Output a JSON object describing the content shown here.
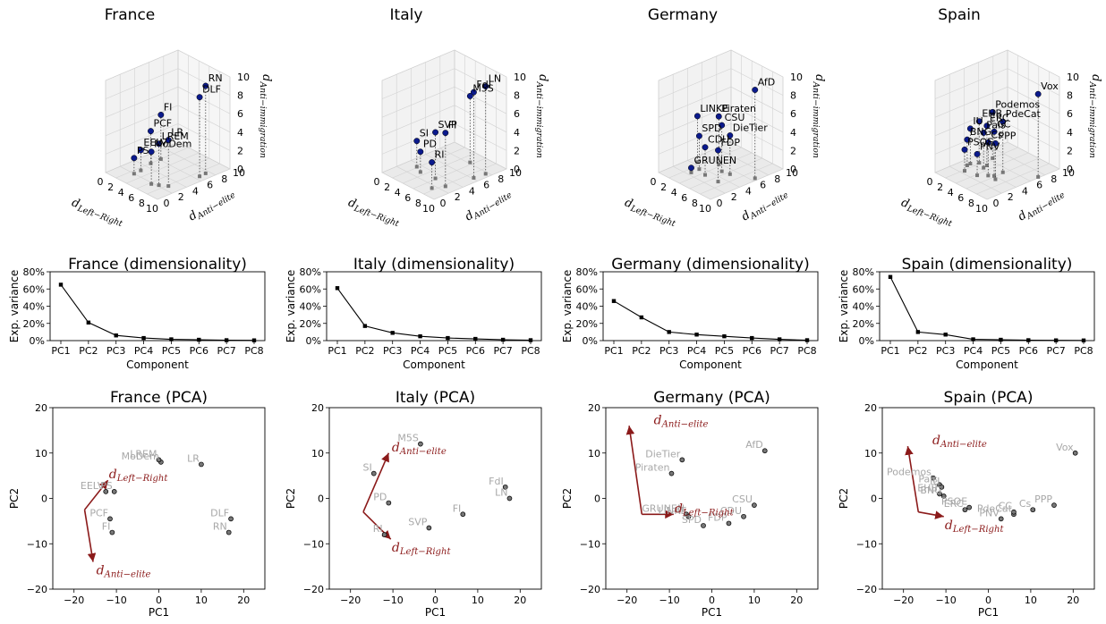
{
  "chart_data": [
    {
      "type": "scatter3d",
      "title": "France",
      "xlabel": "d_Left−Right",
      "ylabel": "d_Anti−elite",
      "zlabel": "d_Anti−immigration",
      "xlim": [
        0,
        10
      ],
      "ylim": [
        0,
        10
      ],
      "zlim": [
        0,
        10
      ],
      "xticks": [
        0,
        2,
        4,
        6,
        8,
        10
      ],
      "yticks": [
        0,
        2,
        4,
        6,
        8,
        10
      ],
      "zticks": [
        0,
        2,
        4,
        6,
        8,
        10
      ],
      "points": [
        {
          "label": "RN",
          "x": 8.8,
          "y": 7.5,
          "z": 9.5
        },
        {
          "label": "DLF",
          "x": 8.9,
          "y": 6.6,
          "z": 8.6
        },
        {
          "label": "FI",
          "x": 2.0,
          "y": 6.2,
          "z": 4.8
        },
        {
          "label": "PCF",
          "x": 2.0,
          "y": 4.8,
          "z": 3.5
        },
        {
          "label": "LR",
          "x": 8.2,
          "y": 2.8,
          "z": 5.0
        },
        {
          "label": "LREM",
          "x": 7.2,
          "y": 2.2,
          "z": 4.5
        },
        {
          "label": "EELV",
          "x": 2.6,
          "y": 3.0,
          "z": 2.2
        },
        {
          "label": "MoDem",
          "x": 6.3,
          "y": 1.8,
          "z": 3.5
        },
        {
          "label": "PS",
          "x": 2.7,
          "y": 2.0,
          "z": 1.7
        }
      ]
    },
    {
      "type": "scatter3d",
      "title": "Italy",
      "xlabel": "d_Left−Right",
      "ylabel": "d_Anti−elite",
      "zlabel": "d_Anti−immigration",
      "xlim": [
        0,
        10
      ],
      "ylim": [
        0,
        10
      ],
      "zlim": [
        0,
        10
      ],
      "xticks": [
        0,
        2,
        4,
        6,
        8,
        10
      ],
      "yticks": [
        0,
        2,
        4,
        6,
        8,
        10
      ],
      "zticks": [
        0,
        2,
        4,
        6,
        8,
        10
      ],
      "points": [
        {
          "label": "FdI",
          "x": 9.0,
          "y": 6.2,
          "z": 9.3
        },
        {
          "label": "LN",
          "x": 9.2,
          "y": 7.7,
          "z": 9.5
        },
        {
          "label": "M5S",
          "x": 5.5,
          "y": 8.2,
          "z": 7.2
        },
        {
          "label": "SVP",
          "x": 5.8,
          "y": 3.2,
          "z": 5.0
        },
        {
          "label": "FI",
          "x": 8.3,
          "y": 2.8,
          "z": 5.8
        },
        {
          "label": "SI",
          "x": 1.8,
          "y": 3.5,
          "z": 2.8
        },
        {
          "label": "PD",
          "x": 3.2,
          "y": 3.0,
          "z": 2.2
        },
        {
          "label": "RI",
          "x": 7.5,
          "y": 1.5,
          "z": 2.8
        }
      ]
    },
    {
      "type": "scatter3d",
      "title": "Germany",
      "xlabel": "d_Left−Right",
      "ylabel": "d_Anti−elite",
      "zlabel": "d_Anti−immigration",
      "xlim": [
        0,
        10
      ],
      "ylim": [
        0,
        10
      ],
      "zlim": [
        0,
        10
      ],
      "xticks": [
        0,
        2,
        4,
        6,
        8,
        10
      ],
      "yticks": [
        0,
        2,
        4,
        6,
        8,
        10
      ],
      "zticks": [
        0,
        2,
        4,
        6,
        8,
        10
      ],
      "points": [
        {
          "label": "AfD",
          "x": 9.5,
          "y": 6.5,
          "z": 9.6
        },
        {
          "label": "Piraten",
          "x": 3.5,
          "y": 5.8,
          "z": 5.2
        },
        {
          "label": "CSU",
          "x": 5.2,
          "y": 5.0,
          "z": 5.0
        },
        {
          "label": "DieTier",
          "x": 6.5,
          "y": 5.2,
          "z": 4.2
        },
        {
          "label": "LINKE",
          "x": 1.2,
          "y": 4.5,
          "z": 5.0
        },
        {
          "label": "SPD",
          "x": 2.8,
          "y": 3.6,
          "z": 3.6
        },
        {
          "label": "CDU",
          "x": 4.5,
          "y": 3.2,
          "z": 3.0
        },
        {
          "label": "FDP",
          "x": 7.0,
          "y": 3.2,
          "z": 3.4
        },
        {
          "label": "GRUNEN",
          "x": 2.8,
          "y": 2.5,
          "z": 0.5
        }
      ]
    },
    {
      "type": "scatter3d",
      "title": "Spain",
      "xlabel": "d_Left−Right",
      "ylabel": "d_Anti−elite",
      "zlabel": "d_Anti−immigration",
      "xlim": [
        0,
        10
      ],
      "ylim": [
        0,
        10
      ],
      "zlim": [
        0,
        10
      ],
      "xticks": [
        0,
        2,
        4,
        6,
        8,
        10
      ],
      "yticks": [
        0,
        2,
        4,
        6,
        8,
        10
      ],
      "zticks": [
        0,
        2,
        4,
        6,
        8,
        10
      ],
      "points": [
        {
          "label": "Vox",
          "x": 9.8,
          "y": 7.2,
          "z": 9.0
        },
        {
          "label": "Podemos",
          "x": 2.0,
          "y": 6.5,
          "z": 5.0
        },
        {
          "label": "PdeCat",
          "x": 5.8,
          "y": 5.2,
          "z": 5.5
        },
        {
          "label": "EHB",
          "x": 1.8,
          "y": 4.8,
          "z": 4.5
        },
        {
          "label": "ERC",
          "x": 3.0,
          "y": 5.0,
          "z": 4.3
        },
        {
          "label": "CC",
          "x": 5.8,
          "y": 4.0,
          "z": 4.8
        },
        {
          "label": "IU",
          "x": 1.2,
          "y": 4.0,
          "z": 3.8
        },
        {
          "label": "Pais",
          "x": 3.2,
          "y": 4.4,
          "z": 3.8
        },
        {
          "label": "BNG",
          "x": 1.3,
          "y": 3.5,
          "z": 2.8
        },
        {
          "label": "Cs",
          "x": 5.2,
          "y": 3.6,
          "z": 3.6
        },
        {
          "label": "PPP",
          "x": 6.6,
          "y": 3.6,
          "z": 3.9
        },
        {
          "label": "PSOE",
          "x": 2.2,
          "y": 2.5,
          "z": 2.3
        },
        {
          "label": "PNV",
          "x": 4.2,
          "y": 2.8,
          "z": 2.3
        }
      ]
    },
    {
      "type": "line",
      "title": "France (dimensionality)",
      "xlabel": "Component",
      "ylabel": "Exp. variance",
      "categories": [
        "PC1",
        "PC2",
        "PC3",
        "PC4",
        "PC5",
        "PC6",
        "PC7",
        "PC8"
      ],
      "values": [
        65,
        21,
        6,
        3,
        1.5,
        1,
        0.5,
        0.3
      ],
      "ylim": [
        0,
        80
      ],
      "yticks": [
        "0%",
        "20%",
        "40%",
        "60%",
        "80%"
      ]
    },
    {
      "type": "line",
      "title": "Italy (dimensionality)",
      "xlabel": "Component",
      "ylabel": "Exp. variance",
      "categories": [
        "PC1",
        "PC2",
        "PC3",
        "PC4",
        "PC5",
        "PC6",
        "PC7",
        "PC8"
      ],
      "values": [
        61,
        17,
        9,
        5,
        3,
        2,
        1,
        0.5
      ],
      "ylim": [
        0,
        80
      ],
      "yticks": [
        "0%",
        "20%",
        "40%",
        "60%",
        "80%"
      ]
    },
    {
      "type": "line",
      "title": "Germany (dimensionality)",
      "xlabel": "Component",
      "ylabel": "Exp. variance",
      "categories": [
        "PC1",
        "PC2",
        "PC3",
        "PC4",
        "PC5",
        "PC6",
        "PC7",
        "PC8"
      ],
      "values": [
        46,
        27,
        10,
        7,
        5,
        3,
        1.5,
        0.5
      ],
      "ylim": [
        0,
        80
      ],
      "yticks": [
        "0%",
        "20%",
        "40%",
        "60%",
        "80%"
      ]
    },
    {
      "type": "line",
      "title": "Spain (dimensionality)",
      "xlabel": "Component",
      "ylabel": "Exp. variance",
      "categories": [
        "PC1",
        "PC2",
        "PC3",
        "PC4",
        "PC5",
        "PC6",
        "PC7",
        "PC8"
      ],
      "values": [
        74,
        10,
        7,
        1.5,
        1,
        0.5,
        0.3,
        0.2
      ],
      "ylim": [
        0,
        80
      ],
      "yticks": [
        "0%",
        "20%",
        "40%",
        "60%",
        "80%"
      ]
    },
    {
      "type": "scatter",
      "title": "France (PCA)",
      "xlabel": "PC1",
      "ylabel": "PC2",
      "xlim": [
        -25,
        25
      ],
      "ylim": [
        -20,
        20
      ],
      "xticks": [
        -20,
        -10,
        0,
        10,
        20
      ],
      "yticks": [
        -20,
        -10,
        0,
        10,
        20
      ],
      "points": [
        {
          "label": "MoDem",
          "x": 0.5,
          "y": 8.0
        },
        {
          "label": "LREM",
          "x": 0,
          "y": 8.5
        },
        {
          "label": "LR",
          "x": 10,
          "y": 7.5
        },
        {
          "label": "EELV",
          "x": -12.5,
          "y": 1.5
        },
        {
          "label": "PS",
          "x": -10.5,
          "y": 1.5
        },
        {
          "label": "PCF",
          "x": -11.5,
          "y": -4.5
        },
        {
          "label": "FI",
          "x": -11,
          "y": -7.5
        },
        {
          "label": "DLF",
          "x": 17,
          "y": -4.5
        },
        {
          "label": "RN",
          "x": 16.5,
          "y": -7.5
        }
      ],
      "arrows": [
        {
          "label": "d_Left−Right",
          "x0": -17.5,
          "y0": -2.5,
          "x1": -12,
          "y1": 4
        },
        {
          "label": "d_Anti−elite",
          "x0": -17.5,
          "y0": -2.5,
          "x1": -15.5,
          "y1": -14
        }
      ]
    },
    {
      "type": "scatter",
      "title": "Italy (PCA)",
      "xlabel": "PC1",
      "ylabel": "PC2",
      "xlim": [
        -25,
        25
      ],
      "ylim": [
        -20,
        20
      ],
      "xticks": [
        -20,
        -10,
        0,
        10,
        20
      ],
      "yticks": [
        -20,
        -10,
        0,
        10,
        20
      ],
      "points": [
        {
          "label": "M5S",
          "x": -3.5,
          "y": 12
        },
        {
          "label": "SI",
          "x": -14.5,
          "y": 5.5
        },
        {
          "label": "PD",
          "x": -11,
          "y": -1
        },
        {
          "label": "RI",
          "x": -12,
          "y": -8
        },
        {
          "label": "SVP",
          "x": -1.5,
          "y": -6.5
        },
        {
          "label": "FI",
          "x": 6.5,
          "y": -3.5
        },
        {
          "label": "FdI",
          "x": 16.5,
          "y": 2.5
        },
        {
          "label": "LN",
          "x": 17.5,
          "y": 0
        }
      ],
      "arrows": [
        {
          "label": "d_Anti−elite",
          "x0": -17,
          "y0": -3,
          "x1": -11,
          "y1": 10
        },
        {
          "label": "d_Left−Right",
          "x0": -17,
          "y0": -3,
          "x1": -10.5,
          "y1": -9
        }
      ]
    },
    {
      "type": "scatter",
      "title": "Germany (PCA)",
      "xlabel": "PC1",
      "ylabel": "PC2",
      "xlim": [
        -25,
        25
      ],
      "ylim": [
        -20,
        20
      ],
      "xticks": [
        -20,
        -10,
        0,
        10,
        20
      ],
      "yticks": [
        -20,
        -10,
        0,
        10,
        20
      ],
      "points": [
        {
          "label": "AfD",
          "x": 12.5,
          "y": 10.5
        },
        {
          "label": "DieTier",
          "x": -7,
          "y": 8.5
        },
        {
          "label": "Piraten",
          "x": -9.5,
          "y": 5.5
        },
        {
          "label": "GRUNEN",
          "x": -6,
          "y": -3.5
        },
        {
          "label": "LINKE",
          "x": -5.5,
          "y": -4
        },
        {
          "label": "SPD",
          "x": -2,
          "y": -6
        },
        {
          "label": "FDP",
          "x": 4,
          "y": -5.5
        },
        {
          "label": "CDU",
          "x": 7.5,
          "y": -4
        },
        {
          "label": "CSU",
          "x": 10,
          "y": -1.5
        }
      ],
      "arrows": [
        {
          "label": "d_Anti−elite",
          "x0": -16.5,
          "y0": -3.5,
          "x1": -19.5,
          "y1": 16
        },
        {
          "label": "d_Left−Right",
          "x0": -16.5,
          "y0": -3.5,
          "x1": -9,
          "y1": -3.5
        }
      ]
    },
    {
      "type": "scatter",
      "title": "Spain (PCA)",
      "xlabel": "PC1",
      "ylabel": "PC2",
      "xlim": [
        -25,
        25
      ],
      "ylim": [
        -20,
        20
      ],
      "xticks": [
        -20,
        -10,
        0,
        10,
        20
      ],
      "yticks": [
        -20,
        -10,
        0,
        10,
        20
      ],
      "points": [
        {
          "label": "Vox",
          "x": 20.5,
          "y": 10
        },
        {
          "label": "Podemos",
          "x": -13,
          "y": 4.5
        },
        {
          "label": "Pais",
          "x": -11.5,
          "y": 3
        },
        {
          "label": "IU",
          "x": -11,
          "y": 2.5
        },
        {
          "label": "EHB",
          "x": -11.5,
          "y": 1
        },
        {
          "label": "BNG",
          "x": -10.5,
          "y": 0.5
        },
        {
          "label": "ERC",
          "x": -5.5,
          "y": -2.5
        },
        {
          "label": "PSOE",
          "x": -4.5,
          "y": -2
        },
        {
          "label": "PNV",
          "x": 3,
          "y": -4.5
        },
        {
          "label": "PdeCat",
          "x": 6,
          "y": -3.5
        },
        {
          "label": "CC",
          "x": 6,
          "y": -3
        },
        {
          "label": "Cs",
          "x": 10.5,
          "y": -2.5
        },
        {
          "label": "PPP",
          "x": 15.5,
          "y": -1.5
        }
      ],
      "arrows": [
        {
          "label": "d_Anti−elite",
          "x0": -16.5,
          "y0": -3,
          "x1": -19,
          "y1": 11.5
        },
        {
          "label": "d_Left−Right",
          "x0": -16.5,
          "y0": -3,
          "x1": -10.5,
          "y1": -4
        }
      ]
    }
  ]
}
